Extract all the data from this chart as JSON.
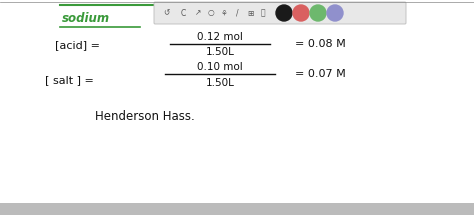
{
  "bg_color": "#ffffff",
  "sodium_color": "#3a9a3a",
  "sodium_text": "sodium",
  "acid_label": "[acid] =",
  "acid_num": "0.12 mol",
  "acid_den": "1.50L",
  "acid_result": "= 0.08 M",
  "salt_label": "[ salt ] =",
  "salt_num": "0.10 mol",
  "salt_den": "1.50L",
  "salt_result": "= 0.07 M",
  "henderson_text": "Henderson Hass.",
  "circle_colors": [
    "#1a1a1a",
    "#d96060",
    "#6db86d",
    "#9090cc"
  ],
  "figsize": [
    4.74,
    2.15
  ],
  "dpi": 100
}
